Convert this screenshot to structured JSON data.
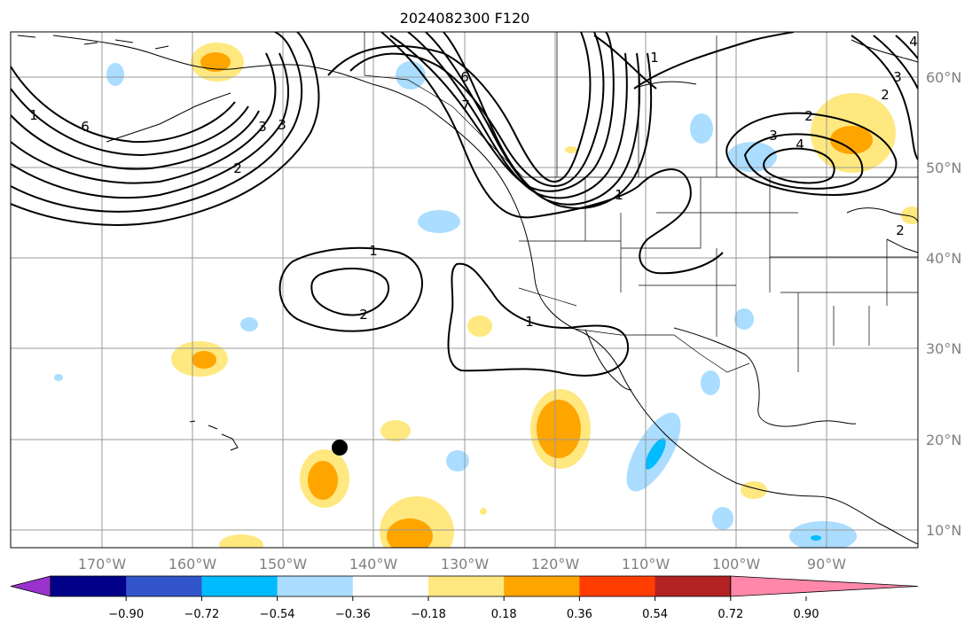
{
  "title": "2024082300 F120",
  "lon_labels": [
    "170°W",
    "160°W",
    "150°W",
    "140°W",
    "130°W",
    "120°W",
    "110°W",
    "100°W",
    "90°W"
  ],
  "lat_labels": [
    "60°N",
    "50°N",
    "40°N",
    "30°N",
    "20°N",
    "10°N"
  ],
  "colorbar": {
    "colors": [
      "#9933cc",
      "#000088",
      "#3355cc",
      "#00bbff",
      "#aaddff",
      "#ffffff",
      "#ffe880",
      "#ffa500",
      "#ff3d00",
      "#b22222",
      "#ff88aa"
    ],
    "ticks": [
      "−0.90",
      "−0.72",
      "−0.54",
      "−0.36",
      "−0.18",
      "0.18",
      "0.36",
      "0.54",
      "0.72",
      "0.90"
    ]
  },
  "contour_labels": [
    "1",
    "2",
    "3",
    "4",
    "6",
    "2",
    "3",
    "1",
    "6",
    "7",
    "1",
    "2",
    "3",
    "4",
    "2",
    "3",
    "1",
    "2",
    "1"
  ],
  "marker": "black-dot"
}
